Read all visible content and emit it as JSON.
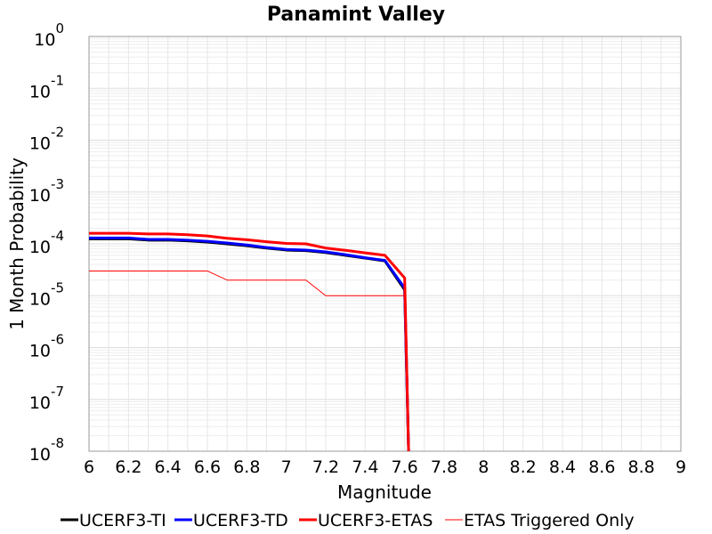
{
  "chart_data": {
    "type": "line",
    "title": "Panamint Valley",
    "xlabel": "Magnitude",
    "ylabel": "1 Month Probability",
    "xlim": [
      6,
      9
    ],
    "ylim": [
      1e-08,
      1
    ],
    "yscale": "log",
    "grid": true,
    "legend_position": "bottom",
    "xticks": [
      "6",
      "6.2",
      "6.4",
      "6.6",
      "6.8",
      "7",
      "7.2",
      "7.4",
      "7.6",
      "7.8",
      "8",
      "8.2",
      "8.4",
      "8.6",
      "8.8",
      "9"
    ],
    "yticks": [
      {
        "base": "10",
        "exp": "0"
      },
      {
        "base": "10",
        "exp": "-1"
      },
      {
        "base": "10",
        "exp": "-2"
      },
      {
        "base": "10",
        "exp": "-3"
      },
      {
        "base": "10",
        "exp": "-4"
      },
      {
        "base": "10",
        "exp": "-5"
      },
      {
        "base": "10",
        "exp": "-6"
      },
      {
        "base": "10",
        "exp": "-7"
      },
      {
        "base": "10",
        "exp": "-8"
      }
    ],
    "x": [
      6.0,
      6.1,
      6.2,
      6.3,
      6.4,
      6.5,
      6.6,
      6.7,
      6.8,
      6.9,
      7.0,
      7.1,
      7.2,
      7.3,
      7.4,
      7.5,
      7.6,
      7.62
    ],
    "series": [
      {
        "name": "UCERF3-TI",
        "color": "#000000",
        "width": 3,
        "values": [
          0.000125,
          0.000125,
          0.000125,
          0.000118,
          0.000118,
          0.000114,
          0.000108,
          0.0001,
          9.2e-05,
          8.3e-05,
          7.6e-05,
          7.4e-05,
          6.8e-05,
          6e-05,
          5.3e-05,
          4.7e-05,
          1.3e-05,
          1e-08
        ]
      },
      {
        "name": "UCERF3-TD",
        "color": "#0000ff",
        "width": 3,
        "values": [
          0.00013,
          0.00013,
          0.00013,
          0.000122,
          0.000122,
          0.000118,
          0.000112,
          0.000104,
          9.5e-05,
          8.5e-05,
          7.8e-05,
          7.6e-05,
          7e-05,
          6.2e-05,
          5.4e-05,
          4.8e-05,
          1.4e-05,
          1e-08
        ]
      },
      {
        "name": "UCERF3-ETAS",
        "color": "#ff0000",
        "width": 3,
        "values": [
          0.00016,
          0.00016,
          0.00016,
          0.000155,
          0.000155,
          0.00015,
          0.000142,
          0.000128,
          0.00012,
          0.00011,
          0.000102,
          0.0001,
          8.3e-05,
          7.5e-05,
          6.7e-05,
          6e-05,
          2.2e-05,
          1e-08
        ]
      },
      {
        "name": "ETAS Triggered Only",
        "color": "#ff0000",
        "width": 1,
        "values": [
          3e-05,
          3e-05,
          3e-05,
          3e-05,
          3e-05,
          3e-05,
          3e-05,
          2e-05,
          2e-05,
          2e-05,
          2e-05,
          2e-05,
          1e-05,
          1e-05,
          1e-05,
          1e-05,
          1e-05,
          1e-08
        ]
      }
    ]
  }
}
